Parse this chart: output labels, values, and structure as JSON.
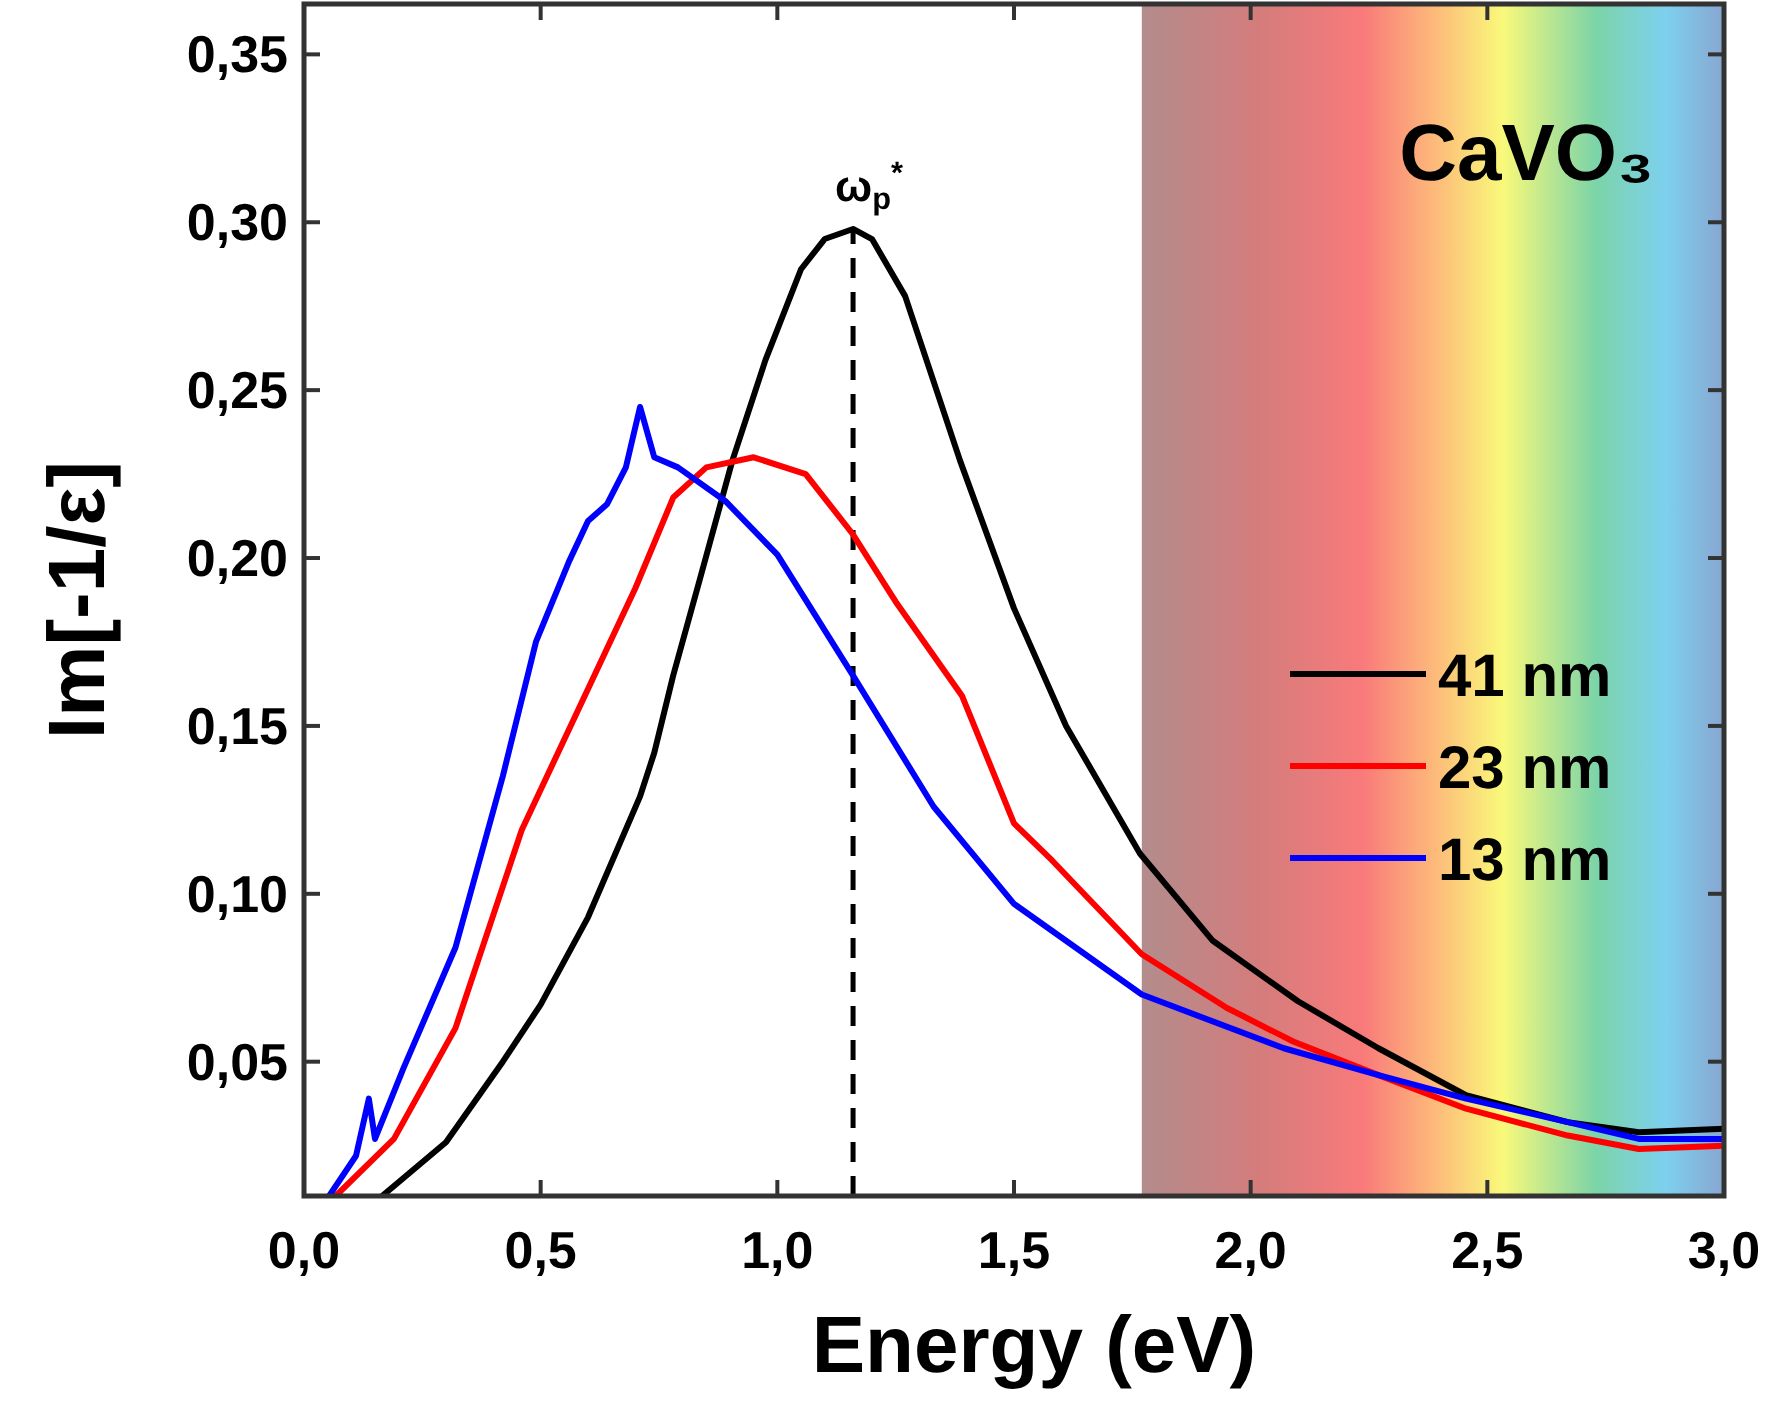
{
  "chart_data": {
    "type": "line",
    "xlabel": "Energy (eV)",
    "ylabel": "Im[-1/ε]",
    "xlim": [
      0,
      3.0
    ],
    "ylim": [
      0.01,
      0.365
    ],
    "xticks": [
      {
        "value": 0,
        "label": "0,0"
      },
      {
        "value": 0.5,
        "label": "0,5"
      },
      {
        "value": 1,
        "label": "1,0"
      },
      {
        "value": 1.5,
        "label": "1,5"
      },
      {
        "value": 2,
        "label": "2,0"
      },
      {
        "value": 2.5,
        "label": "2,5"
      },
      {
        "value": 3,
        "label": "3,0"
      }
    ],
    "yticks": [
      {
        "value": 0.05,
        "label": "0,05"
      },
      {
        "value": 0.1,
        "label": "0,10"
      },
      {
        "value": 0.15,
        "label": "0,15"
      },
      {
        "value": 0.2,
        "label": "0,20"
      },
      {
        "value": 0.25,
        "label": "0,25"
      },
      {
        "value": 0.3,
        "label": "0,30"
      },
      {
        "value": 0.35,
        "label": "0,35"
      }
    ],
    "grid": false,
    "legend": "center right",
    "line_style": "solid",
    "marker": "none",
    "annotations": [
      "CaVO₃"
    ],
    "ref_lines": [
      {
        "axis": "x",
        "value": 1.16,
        "label": "ω$_{p}$$^{*}$",
        "line_style": "dashed",
        "color": "#000000"
      }
    ],
    "bands": [
      {
        "axis": "x",
        "from": 1.77,
        "to": 3.0,
        "color": "#b38c8c"
      }
    ],
    "series": [
      {
        "name": "41 nm",
        "color": "#000000",
        "x": [
          0.165,
          0.3,
          0.42,
          0.5,
          0.6,
          0.71,
          0.74,
          0.78,
          0.835,
          0.905,
          0.975,
          1.05,
          1.1,
          1.16,
          1.2,
          1.27,
          1.386,
          1.5,
          1.61,
          1.766,
          1.92,
          2.1,
          2.27,
          2.455,
          2.67,
          2.82,
          3.0
        ],
        "values": [
          0.01,
          0.026,
          0.05,
          0.067,
          0.093,
          0.129,
          0.142,
          0.165,
          0.193,
          0.229,
          0.259,
          0.286,
          0.295,
          0.298,
          0.295,
          0.278,
          0.229,
          0.185,
          0.15,
          0.112,
          0.086,
          0.068,
          0.054,
          0.04,
          0.032,
          0.029,
          0.03
        ]
      },
      {
        "name": "23 nm",
        "color": "#ff0000",
        "x": [
          0.067,
          0.19,
          0.32,
          0.46,
          0.6,
          0.7,
          0.78,
          0.85,
          0.95,
          1.06,
          1.16,
          1.25,
          1.39,
          1.5,
          1.58,
          1.77,
          1.95,
          2.09,
          2.27,
          2.455,
          2.67,
          2.82,
          3.0
        ],
        "values": [
          0.01,
          0.027,
          0.06,
          0.119,
          0.161,
          0.191,
          0.218,
          0.227,
          0.23,
          0.225,
          0.207,
          0.187,
          0.159,
          0.121,
          0.11,
          0.082,
          0.066,
          0.056,
          0.046,
          0.036,
          0.028,
          0.024,
          0.025
        ]
      },
      {
        "name": "13 nm",
        "color": "#0000ff",
        "x": [
          0.053,
          0.11,
          0.137,
          0.15,
          0.21,
          0.32,
          0.42,
          0.49,
          0.56,
          0.6,
          0.64,
          0.68,
          0.71,
          0.74,
          0.79,
          0.89,
          1.0,
          1.16,
          1.33,
          1.5,
          1.77,
          2.07,
          2.27,
          2.455,
          2.67,
          2.82,
          3.0
        ],
        "values": [
          0.01,
          0.022,
          0.039,
          0.027,
          0.048,
          0.084,
          0.135,
          0.175,
          0.199,
          0.211,
          0.216,
          0.227,
          0.245,
          0.23,
          0.227,
          0.217,
          0.201,
          0.165,
          0.126,
          0.097,
          0.07,
          0.054,
          0.046,
          0.039,
          0.032,
          0.027,
          0.027
        ]
      }
    ]
  }
}
